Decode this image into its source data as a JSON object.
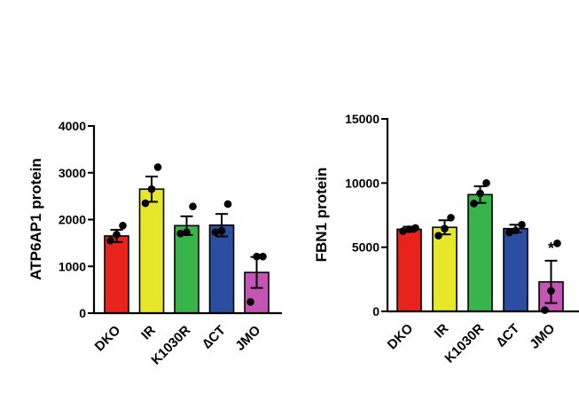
{
  "chart_data": [
    {
      "type": "bar",
      "ylabel": "ATP6AP1 protein",
      "ylim": [
        0,
        4000
      ],
      "yticks": [
        0,
        1000,
        2000,
        3000,
        4000
      ],
      "categories": [
        "DKO",
        "IR",
        "K1030R",
        "∆CT",
        "JMO"
      ],
      "values": [
        1650,
        2650,
        1870,
        1880,
        870
      ],
      "errors": [
        130,
        270,
        200,
        240,
        330
      ],
      "points": [
        [
          1550,
          1680,
          1870
        ],
        [
          2350,
          2650,
          3120
        ],
        [
          1700,
          1730,
          2280
        ],
        [
          1730,
          1760,
          2330
        ],
        [
          240,
          1210,
          1210
        ]
      ],
      "colors": [
        "#e8231d",
        "#e6e62a",
        "#39b44a",
        "#2b4ea2",
        "#c455b5"
      ],
      "annotations": [
        "",
        "",
        "",
        "",
        ""
      ]
    },
    {
      "type": "bar",
      "ylabel": "FBN1 protein",
      "ylim": [
        0,
        15000
      ],
      "yticks": [
        0,
        5000,
        10000,
        15000
      ],
      "categories": [
        "DKO",
        "IR",
        "K1030R",
        "∆CT",
        "JMO"
      ],
      "values": [
        6400,
        6550,
        9100,
        6450,
        2300
      ],
      "errors": [
        200,
        550,
        650,
        300,
        1650
      ],
      "points": [
        [
          6250,
          6400,
          6500
        ],
        [
          5900,
          6450,
          7300
        ],
        [
          8400,
          9200,
          10000
        ],
        [
          6150,
          6300,
          6750
        ],
        [
          100,
          1600,
          5300
        ]
      ],
      "colors": [
        "#e8231d",
        "#e6e62a",
        "#39b44a",
        "#2b4ea2",
        "#c455b5"
      ],
      "annotations": [
        "",
        "",
        "",
        "",
        "*"
      ]
    }
  ]
}
